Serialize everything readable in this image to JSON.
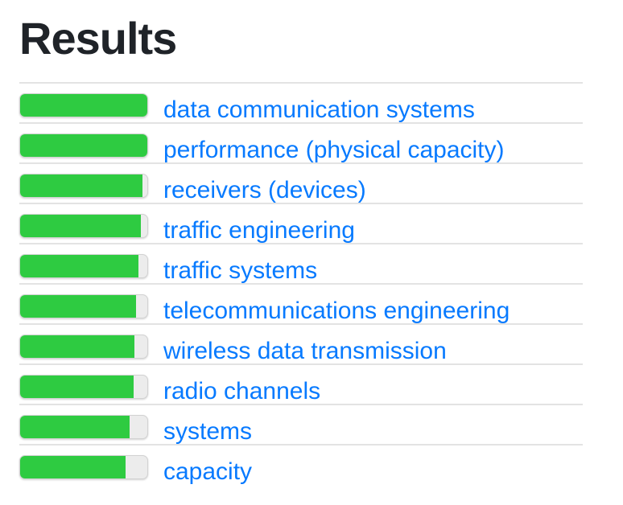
{
  "page": {
    "title": "Results"
  },
  "colors": {
    "bar_fill": "#2ecb41",
    "bar_track": "#ececec",
    "bar_border": "#d2d2d2",
    "row_separator": "#e3e3e3",
    "link_blue": "#077aff",
    "title_text": "#1f2328"
  },
  "chart_data": {
    "type": "bar",
    "orientation": "horizontal",
    "title": "Results",
    "categories": [
      "data communication systems",
      "performance (physical capacity)",
      "receivers (devices)",
      "traffic engineering",
      "traffic systems",
      "telecommunications engineering",
      "wireless data transmission",
      "radio channels",
      "systems",
      "capacity"
    ],
    "values": [
      1.0,
      1.0,
      0.96,
      0.95,
      0.93,
      0.91,
      0.9,
      0.89,
      0.86,
      0.83
    ],
    "xlim": [
      0,
      1
    ],
    "legend": false,
    "grid": false
  },
  "results": {
    "items": [
      {
        "label": "data communication systems",
        "score": 1.0
      },
      {
        "label": "performance (physical capacity)",
        "score": 1.0
      },
      {
        "label": "receivers (devices)",
        "score": 0.96
      },
      {
        "label": "traffic engineering",
        "score": 0.95
      },
      {
        "label": "traffic systems",
        "score": 0.93
      },
      {
        "label": "telecommunications engineering",
        "score": 0.91
      },
      {
        "label": "wireless data transmission",
        "score": 0.9
      },
      {
        "label": "radio channels",
        "score": 0.89
      },
      {
        "label": "systems",
        "score": 0.86
      },
      {
        "label": "capacity",
        "score": 0.83
      }
    ]
  }
}
